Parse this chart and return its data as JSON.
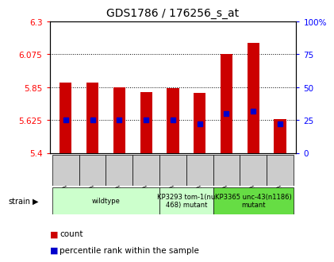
{
  "title": "GDS1786 / 176256_s_at",
  "samples": [
    "GSM40308",
    "GSM40309",
    "GSM40310",
    "GSM40311",
    "GSM40306",
    "GSM40307",
    "GSM40312",
    "GSM40313",
    "GSM40314"
  ],
  "count_values": [
    5.88,
    5.88,
    5.85,
    5.815,
    5.845,
    5.81,
    6.075,
    6.155,
    5.63
  ],
  "percentile_values": [
    25,
    25,
    25,
    25,
    25,
    22,
    30,
    32,
    22
  ],
  "ylim_left": [
    5.4,
    6.3
  ],
  "ylim_right": [
    0,
    100
  ],
  "yticks_left": [
    5.4,
    5.625,
    5.85,
    6.075,
    6.3
  ],
  "yticks_right": [
    0,
    25,
    50,
    75,
    100
  ],
  "ytick_labels_left": [
    "5.4",
    "5.625",
    "5.85",
    "6.075",
    "6.3"
  ],
  "ytick_labels_right": [
    "0",
    "25",
    "50",
    "75",
    "100%"
  ],
  "hlines": [
    5.625,
    5.85,
    6.075
  ],
  "bar_color": "#cc0000",
  "dot_color": "#0000cc",
  "bar_width": 0.45,
  "strain_groups": [
    {
      "label": "wildtype",
      "start": 0,
      "end": 4,
      "color": "#ccffcc"
    },
    {
      "label": "KP3293 tom-1(nu\n468) mutant",
      "start": 4,
      "end": 6,
      "color": "#ccffcc"
    },
    {
      "label": "KP3365 unc-43(n1186)\nmutant",
      "start": 6,
      "end": 9,
      "color": "#66dd44"
    }
  ],
  "legend_count_label": "count",
  "legend_pct_label": "percentile rank within the sample",
  "strain_label": "strain",
  "sample_box_color": "#cccccc",
  "title_fontsize": 10
}
